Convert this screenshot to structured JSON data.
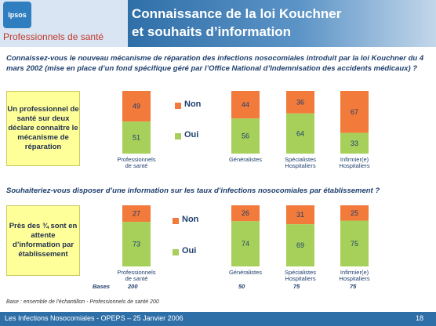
{
  "header": {
    "logo": "Ipsos",
    "subtitle": "Professionnels de santé",
    "title_line1": "Connaissance de la loi Kouchner",
    "title_line2": "et souhaits d’information"
  },
  "questions": {
    "q1": "Connaissez-vous le nouveau mécanisme de réparation des infections nosocomiales introduit par la loi Kouchner du 4 mars 2002 (mise en place d’un fond spécifique géré par l’Office National d’Indemnisation des accidents médicaux) ?",
    "q2": "Souhaiteriez-vous disposer d’une information sur les taux d’infections nosocomiales par établissement ?"
  },
  "callouts": {
    "c1": "Un professionnel de santé sur deux déclare connaître le mécanisme de réparation",
    "c2": "Près des ¾ sont en attente d’information par établissement"
  },
  "legend": {
    "non": "Non",
    "oui": "Oui"
  },
  "colors": {
    "non": "#f27a3a",
    "oui": "#a6d05a",
    "accent": "#2f6fa8"
  },
  "chart_data": [
    {
      "type": "bar",
      "stacked": true,
      "categories": [
        "Professionnels de santé",
        "Généralistes",
        "Spécialistes Hospitaliers",
        "Infirmier(e) Hospitaliers"
      ],
      "series": [
        {
          "name": "Non",
          "values": [
            49,
            44,
            36,
            67
          ]
        },
        {
          "name": "Oui",
          "values": [
            51,
            56,
            64,
            33
          ]
        }
      ]
    },
    {
      "type": "bar",
      "stacked": true,
      "categories": [
        "Professionnels de santé",
        "Généralistes",
        "Spécialistes Hospitaliers",
        "Infirmier(e) Hospitaliers"
      ],
      "series": [
        {
          "name": "Non",
          "values": [
            27,
            26,
            31,
            25
          ]
        },
        {
          "name": "Oui",
          "values": [
            73,
            74,
            69,
            75
          ]
        }
      ]
    }
  ],
  "bases": {
    "label": "Bases",
    "values": [
      "200",
      "50",
      "75",
      "75"
    ]
  },
  "base_note": "Base : ensemble de l'échantillon - Professionnels de santé 200",
  "footer": {
    "text": "Les Infections Nosocomiales - OPEPS – 25 Janvier 2006",
    "page": "18"
  }
}
